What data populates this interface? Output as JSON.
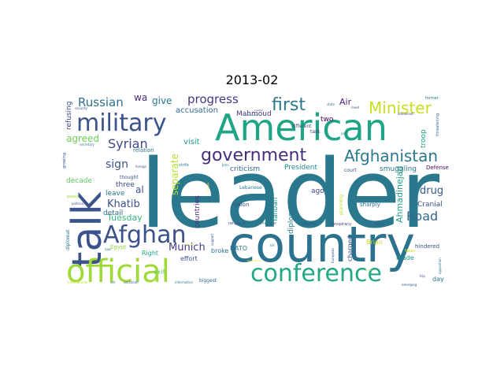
{
  "chart_data": {
    "type": "wordcloud",
    "title": "2013-02",
    "colormap": "viridis",
    "background": "#ffffff",
    "words": [
      {
        "text": "leader",
        "weight": 1.0,
        "color": "#2a788e"
      },
      {
        "text": "country",
        "weight": 0.72,
        "color": "#2c728e"
      },
      {
        "text": "American",
        "weight": 0.58,
        "color": "#20a486"
      },
      {
        "text": "talk",
        "weight": 0.56,
        "color": "#3b528b"
      },
      {
        "text": "official",
        "weight": 0.46,
        "color": "#a0da39"
      },
      {
        "text": "military",
        "weight": 0.42,
        "color": "#3b528b"
      },
      {
        "text": "conference",
        "weight": 0.4,
        "color": "#22a884"
      },
      {
        "text": "Afghan",
        "weight": 0.38,
        "color": "#3b528b"
      },
      {
        "text": "government",
        "weight": 0.33,
        "color": "#472d7b"
      },
      {
        "text": "first",
        "weight": 0.3,
        "color": "#2a788e"
      },
      {
        "text": "Afghanistan",
        "weight": 0.27,
        "color": "#2a788e"
      },
      {
        "text": "Minister",
        "weight": 0.25,
        "color": "#c8e020"
      },
      {
        "text": "Syrian",
        "weight": 0.2,
        "color": "#3e4a89"
      },
      {
        "text": "Russian",
        "weight": 0.19,
        "color": "#2d708e"
      },
      {
        "text": "progress",
        "weight": 0.18,
        "color": "#443983"
      },
      {
        "text": "sign",
        "weight": 0.17,
        "color": "#3b528b"
      },
      {
        "text": "Road",
        "weight": 0.17,
        "color": "#31688e"
      },
      {
        "text": "Munich",
        "weight": 0.15,
        "color": "#443983"
      },
      {
        "text": "drug",
        "weight": 0.15,
        "color": "#38588c"
      },
      {
        "text": "Khatib",
        "weight": 0.15,
        "color": "#3b528b"
      },
      {
        "text": "separate",
        "weight": 0.14,
        "color": "#b5de2b"
      },
      {
        "text": "Ahmadinejad",
        "weight": 0.13,
        "color": "#1f9e89"
      },
      {
        "text": "agreed",
        "weight": 0.13,
        "color": "#6ece58"
      },
      {
        "text": "give",
        "weight": 0.12,
        "color": "#2a788e"
      },
      {
        "text": "wa",
        "weight": 0.12,
        "color": "#472d7b"
      },
      {
        "text": "al",
        "weight": 0.12,
        "color": "#3b528b"
      },
      {
        "text": "Air",
        "weight": 0.11,
        "color": "#482475"
      },
      {
        "text": "Tuesday",
        "weight": 0.11,
        "color": "#35b779"
      },
      {
        "text": "accusation",
        "weight": 0.1,
        "color": "#31688e"
      },
      {
        "text": "Mahmoud",
        "weight": 0.1,
        "color": "#46337e"
      },
      {
        "text": "visit",
        "weight": 0.1,
        "color": "#1f9a8a"
      },
      {
        "text": "refusing",
        "weight": 0.1,
        "color": "#3e4989"
      },
      {
        "text": "troop",
        "weight": 0.1,
        "color": "#1fa187"
      },
      {
        "text": "criticism",
        "weight": 0.09,
        "color": "#33638d"
      },
      {
        "text": "President",
        "weight": 0.09,
        "color": "#228c8d"
      },
      {
        "text": "countries",
        "weight": 0.09,
        "color": "#472c7a"
      },
      {
        "text": "decade",
        "weight": 0.09,
        "color": "#5ec962"
      },
      {
        "text": "three",
        "weight": 0.09,
        "color": "#414487"
      },
      {
        "text": "leave",
        "weight": 0.09,
        "color": "#2a788e"
      },
      {
        "text": "two",
        "weight": 0.09,
        "color": "#440154"
      },
      {
        "text": "Taliban",
        "weight": 0.09,
        "color": "#20928c"
      },
      {
        "text": "diplomatic",
        "weight": 0.09,
        "color": "#29798e"
      },
      {
        "text": "smuggling",
        "weight": 0.09,
        "color": "#2a768e"
      },
      {
        "text": "Cranial",
        "weight": 0.09,
        "color": "#3b528b"
      },
      {
        "text": "detail",
        "weight": 0.09,
        "color": "#2c728e"
      },
      {
        "text": "ago",
        "weight": 0.09,
        "color": "#404387"
      },
      {
        "text": "Right",
        "weight": 0.08,
        "color": "#20a386"
      },
      {
        "text": "broke",
        "weight": 0.08,
        "color": "#2d708e"
      },
      {
        "text": "effort",
        "weight": 0.08,
        "color": "#3b528b"
      },
      {
        "text": "made",
        "weight": 0.08,
        "color": "#1f958b"
      },
      {
        "text": "day",
        "weight": 0.08,
        "color": "#2a788e"
      },
      {
        "text": "exit",
        "weight": 0.08,
        "color": "#6ccd5a"
      },
      {
        "text": "charged",
        "weight": 0.08,
        "color": "#3b528b"
      },
      {
        "text": "NATO",
        "weight": 0.08,
        "color": "#2a788e"
      },
      {
        "text": "Brian",
        "weight": 0.07,
        "color": "#c2df23"
      },
      {
        "text": "sharply",
        "weight": 0.07,
        "color": "#2d708e"
      },
      {
        "text": "hindered",
        "weight": 0.07,
        "color": "#3b528b"
      },
      {
        "text": "vision",
        "weight": 0.07,
        "color": "#3b528b"
      },
      {
        "text": "Egypt",
        "weight": 0.07,
        "color": "#90d743"
      },
      {
        "text": "Defense",
        "weight": 0.07,
        "color": "#470e61"
      },
      {
        "text": "relation",
        "weight": 0.07,
        "color": "#2a788e"
      },
      {
        "text": "thought",
        "weight": 0.06,
        "color": "#3b528b"
      },
      {
        "text": "biggest",
        "weight": 0.06,
        "color": "#31688e"
      },
      {
        "text": "diplomat",
        "weight": 0.06,
        "color": "#2a788e"
      },
      {
        "text": "task",
        "weight": 0.06,
        "color": "#443983"
      },
      {
        "text": "court",
        "weight": 0.06,
        "color": "#3b528b"
      },
      {
        "text": "Lebanese",
        "weight": 0.06,
        "color": "#2a788e"
      },
      {
        "text": "planning",
        "weight": 0.06,
        "color": "#bddf26"
      },
      {
        "text": "different",
        "weight": 0.06,
        "color": "#3b528b"
      },
      {
        "text": "former",
        "weight": 0.05,
        "color": "#2a788e"
      },
      {
        "text": "threatening",
        "weight": 0.05,
        "color": "#31688e"
      },
      {
        "text": "growing",
        "weight": 0.05,
        "color": "#3b528b"
      },
      {
        "text": "peace",
        "weight": 0.05,
        "color": "#a5db36"
      },
      {
        "text": "strife",
        "weight": 0.05,
        "color": "#2a788e"
      },
      {
        "text": "religious",
        "weight": 0.05,
        "color": "#3b528b"
      },
      {
        "text": "investor",
        "weight": 0.05,
        "color": "#2a788e"
      },
      {
        "text": "boycott",
        "weight": 0.05,
        "color": "#3b528b"
      },
      {
        "text": "conspiracy",
        "weight": 0.05,
        "color": "#443983"
      },
      {
        "text": "opposition",
        "weight": 0.05,
        "color": "#2a788e"
      },
      {
        "text": "Mean",
        "weight": 0.05,
        "color": "#d0e11c"
      },
      {
        "text": "Kerry",
        "weight": 0.05,
        "color": "#3b528b"
      },
      {
        "text": "kill",
        "weight": 0.05,
        "color": "#2a788e"
      },
      {
        "text": "security",
        "weight": 0.04,
        "color": "#3b528b"
      },
      {
        "text": "secretary",
        "weight": 0.04,
        "color": "#2a788e"
      },
      {
        "text": "political",
        "weight": 0.04,
        "color": "#3b528b"
      },
      {
        "text": "international",
        "weight": 0.04,
        "color": "#bddf26"
      },
      {
        "text": "set",
        "weight": 0.04,
        "color": "#2a788e"
      },
      {
        "text": "sectarian",
        "weight": 0.04,
        "color": "#3b528b"
      },
      {
        "text": "information",
        "weight": 0.04,
        "color": "#2a788e"
      },
      {
        "text": "emerging",
        "weight": 0.04,
        "color": "#3b528b"
      },
      {
        "text": "advanced",
        "weight": 0.04,
        "color": "#443983"
      },
      {
        "text": "foreign",
        "weight": 0.04,
        "color": "#3b528b"
      },
      {
        "text": "John",
        "weight": 0.04,
        "color": "#2a788e"
      },
      {
        "text": "support",
        "weight": 0.04,
        "color": "#3b528b"
      },
      {
        "text": "state",
        "weight": 0.04,
        "color": "#2a788e"
      },
      {
        "text": "meet",
        "weight": 0.04,
        "color": "#3b528b"
      },
      {
        "text": "poll",
        "weight": 0.04,
        "color": "#2a788e"
      },
      {
        "text": "trip",
        "weight": 0.04,
        "color": "#3b528b"
      },
      {
        "text": "saw",
        "weight": 0.04,
        "color": "#2a788e"
      },
      {
        "text": "European",
        "weight": 0.04,
        "color": "#3b528b"
      },
      {
        "text": "alternative",
        "weight": 0.03,
        "color": "#2a788e"
      },
      {
        "text": "market",
        "weight": 0.03,
        "color": "#3b528b"
      },
      {
        "text": "protest",
        "weight": 0.03,
        "color": "#a0da39"
      },
      {
        "text": "threatened",
        "weight": 0.03,
        "color": "#fde725"
      },
      {
        "text": "tension",
        "weight": 0.03,
        "color": "#a0da39"
      },
      {
        "text": "struggle",
        "weight": 0.03,
        "color": "#fde725"
      }
    ]
  }
}
